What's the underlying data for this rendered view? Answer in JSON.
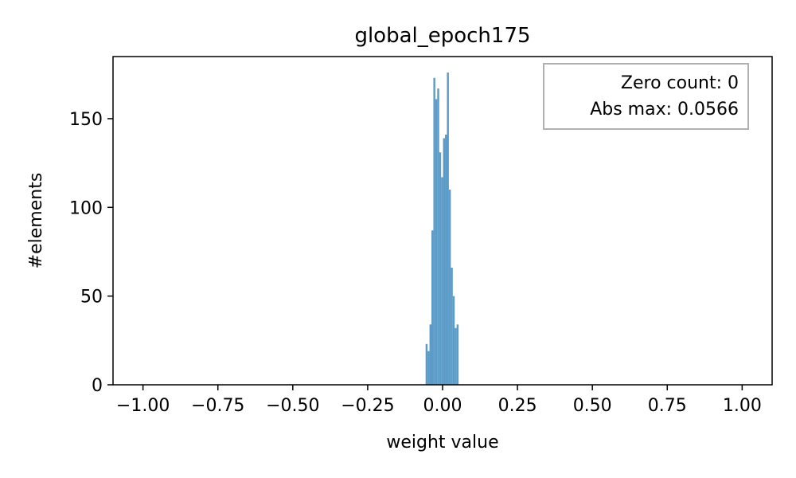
{
  "chart_data": {
    "type": "bar",
    "title": "global_epoch175",
    "xlabel": "weight value",
    "ylabel": "#elements",
    "xlim": [
      -1.1,
      1.1
    ],
    "ylim": [
      0,
      185
    ],
    "xticks": [
      -1.0,
      -0.75,
      -0.5,
      -0.25,
      0.0,
      0.25,
      0.5,
      0.75,
      1.0
    ],
    "xtick_labels": [
      "−1.00",
      "−0.75",
      "−0.50",
      "−0.25",
      "0.00",
      "0.25",
      "0.50",
      "0.75",
      "1.00"
    ],
    "yticks": [
      0,
      50,
      100,
      150
    ],
    "ytick_labels": [
      "0",
      "50",
      "100",
      "150"
    ],
    "bar_color": "#5b9bc8",
    "grid": false,
    "bins": {
      "edges": [
        -0.0566,
        -0.0501,
        -0.0437,
        -0.0372,
        -0.0307,
        -0.0243,
        -0.0178,
        -0.0113,
        -0.0049,
        0.0016,
        0.0081,
        0.0145,
        0.021,
        0.0275,
        0.034,
        0.0404,
        0.0469,
        0.0534
      ],
      "counts": [
        23,
        19,
        34,
        87,
        173,
        161,
        167,
        131,
        117,
        139,
        141,
        176,
        110,
        66,
        50,
        32,
        34
      ]
    },
    "annotation": {
      "lines": [
        "Zero count: 0",
        "Abs max: 0.0566"
      ],
      "position": "top-right"
    }
  }
}
